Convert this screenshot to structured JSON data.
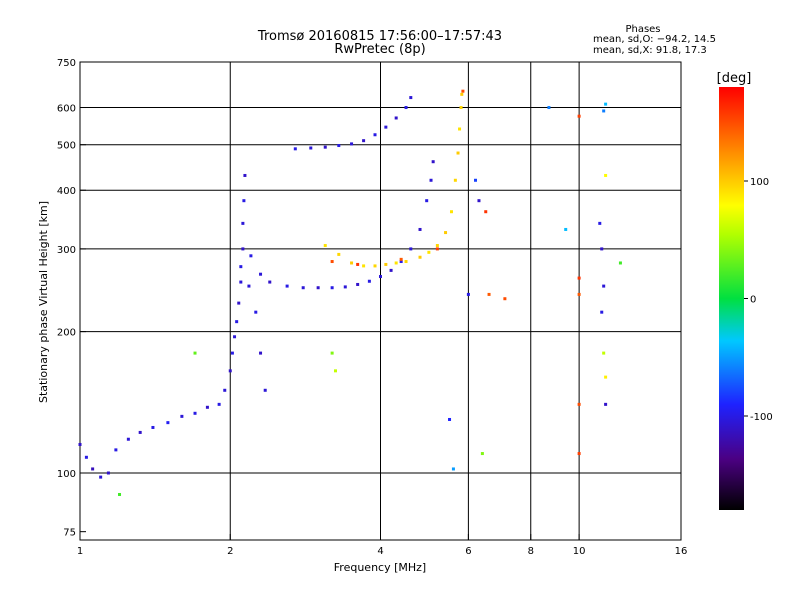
{
  "chart_data": {
    "type": "scatter",
    "title": "Tromsø 20160815 17:56:00–17:57:43",
    "subtitle": "RwPretec (8p)",
    "xlabel": "Frequency [MHz]",
    "ylabel": "Stationary phase Virtual Height [km]",
    "x_scale": "log",
    "y_scale": "log",
    "xlim": [
      1,
      16
    ],
    "ylim": [
      72,
      750
    ],
    "x_ticks": [
      1,
      2,
      4,
      6,
      8,
      10,
      16
    ],
    "y_ticks": [
      75,
      100,
      200,
      300,
      400,
      500,
      600,
      750
    ],
    "x_grid": [
      2,
      4,
      6,
      8,
      10
    ],
    "y_grid": [
      100,
      200,
      300,
      400,
      500,
      600
    ],
    "legend": {
      "title": "Phases",
      "lines": [
        "mean, sd,O: −94.2, 14.5",
        "mean, sd,X:  91.8, 17.3"
      ]
    },
    "colorbar": {
      "label": "[deg]",
      "range": [
        -180,
        180
      ],
      "ticks": [
        100,
        0,
        -100
      ]
    },
    "series": [
      {
        "values": [
          [
            1.0,
            115,
            -110
          ],
          [
            1.03,
            108,
            -100
          ],
          [
            1.06,
            102,
            -115
          ],
          [
            1.1,
            98,
            -105
          ],
          [
            1.14,
            100,
            -110
          ],
          [
            1.18,
            112,
            -100
          ],
          [
            1.25,
            118,
            -105
          ],
          [
            1.32,
            122,
            -110
          ],
          [
            1.4,
            125,
            -100
          ],
          [
            1.5,
            128,
            -95
          ],
          [
            1.6,
            132,
            -105
          ],
          [
            1.7,
            134,
            -100
          ],
          [
            1.8,
            138,
            -110
          ],
          [
            1.9,
            140,
            -100
          ],
          [
            1.95,
            150,
            -105
          ],
          [
            2.0,
            165,
            -110
          ],
          [
            2.02,
            180,
            -100
          ],
          [
            2.04,
            195,
            -105
          ],
          [
            2.06,
            210,
            -100
          ],
          [
            2.08,
            230,
            -110
          ],
          [
            2.1,
            255,
            -105
          ],
          [
            2.1,
            275,
            -100
          ],
          [
            2.12,
            300,
            -110
          ],
          [
            2.12,
            340,
            -105
          ],
          [
            2.13,
            380,
            -100
          ],
          [
            2.14,
            430,
            -110
          ],
          [
            2.18,
            250,
            -105
          ],
          [
            2.25,
            220,
            -100
          ],
          [
            2.3,
            180,
            -110
          ],
          [
            2.35,
            150,
            -105
          ]
        ]
      },
      {
        "values": [
          [
            2.2,
            290,
            -100
          ],
          [
            2.3,
            265,
            -105
          ],
          [
            2.4,
            255,
            -110
          ],
          [
            2.6,
            250,
            -100
          ],
          [
            2.8,
            248,
            -105
          ],
          [
            3.0,
            248,
            -110
          ],
          [
            3.2,
            248,
            -100
          ],
          [
            3.4,
            249,
            -105
          ],
          [
            3.6,
            252,
            -110
          ],
          [
            3.8,
            256,
            -100
          ],
          [
            4.0,
            262,
            -105
          ],
          [
            4.2,
            270,
            -110
          ],
          [
            4.4,
            282,
            -100
          ],
          [
            4.6,
            300,
            -105
          ],
          [
            4.8,
            330,
            -110
          ],
          [
            4.95,
            380,
            -100
          ],
          [
            5.05,
            420,
            -105
          ],
          [
            5.1,
            460,
            -110
          ]
        ]
      },
      {
        "values": [
          [
            2.7,
            490,
            -100
          ],
          [
            2.9,
            492,
            -105
          ],
          [
            3.1,
            494,
            -110
          ],
          [
            3.3,
            498,
            -100
          ],
          [
            3.5,
            502,
            -105
          ],
          [
            3.7,
            510,
            -110
          ],
          [
            3.9,
            525,
            -100
          ],
          [
            4.1,
            545,
            -105
          ],
          [
            4.3,
            570,
            -110
          ],
          [
            4.5,
            600,
            -100
          ],
          [
            4.6,
            630,
            -105
          ]
        ]
      },
      {
        "values": [
          [
            3.1,
            305,
            90
          ],
          [
            3.3,
            292,
            95
          ],
          [
            3.5,
            280,
            100
          ],
          [
            3.7,
            276,
            90
          ],
          [
            3.9,
            276,
            95
          ],
          [
            4.1,
            278,
            100
          ],
          [
            4.3,
            280,
            90
          ],
          [
            4.5,
            282,
            95
          ],
          [
            4.8,
            288,
            100
          ],
          [
            5.0,
            295,
            90
          ],
          [
            5.2,
            305,
            95
          ],
          [
            5.4,
            325,
            100
          ],
          [
            5.55,
            360,
            90
          ],
          [
            5.65,
            420,
            95
          ],
          [
            5.72,
            480,
            100
          ],
          [
            5.76,
            540,
            90
          ],
          [
            5.8,
            600,
            95
          ],
          [
            5.82,
            640,
            100
          ]
        ]
      },
      {
        "values": [
          [
            3.2,
            282,
            150
          ],
          [
            3.6,
            278,
            160
          ],
          [
            4.4,
            285,
            145
          ],
          [
            5.2,
            300,
            155
          ],
          [
            5.85,
            650,
            150
          ],
          [
            6.5,
            360,
            160
          ],
          [
            6.6,
            240,
            145
          ],
          [
            7.1,
            235,
            150
          ],
          [
            10.0,
            575,
            155
          ],
          [
            10.0,
            260,
            160
          ],
          [
            10.0,
            240,
            145
          ],
          [
            10.0,
            140,
            150
          ],
          [
            10.0,
            110,
            155
          ]
        ]
      },
      {
        "values": [
          [
            1.2,
            90,
            20
          ],
          [
            1.7,
            180,
            30
          ],
          [
            3.2,
            180,
            40
          ],
          [
            3.25,
            165,
            60
          ],
          [
            6.4,
            110,
            40
          ],
          [
            11.2,
            590,
            -60
          ],
          [
            11.3,
            430,
            80
          ],
          [
            11.2,
            180,
            60
          ],
          [
            11.3,
            160,
            85
          ],
          [
            12.1,
            280,
            20
          ]
        ]
      },
      {
        "values": [
          [
            6.2,
            420,
            -80
          ],
          [
            6.3,
            380,
            -110
          ],
          [
            6.0,
            240,
            -100
          ],
          [
            5.5,
            130,
            -90
          ],
          [
            5.6,
            102,
            -50
          ],
          [
            11.0,
            340,
            -100
          ],
          [
            11.1,
            300,
            -110
          ],
          [
            11.2,
            250,
            -105
          ],
          [
            11.1,
            220,
            -100
          ],
          [
            11.3,
            140,
            -110
          ],
          [
            9.4,
            330,
            -40
          ],
          [
            8.7,
            600,
            -60
          ],
          [
            11.3,
            610,
            -40
          ]
        ]
      }
    ]
  }
}
